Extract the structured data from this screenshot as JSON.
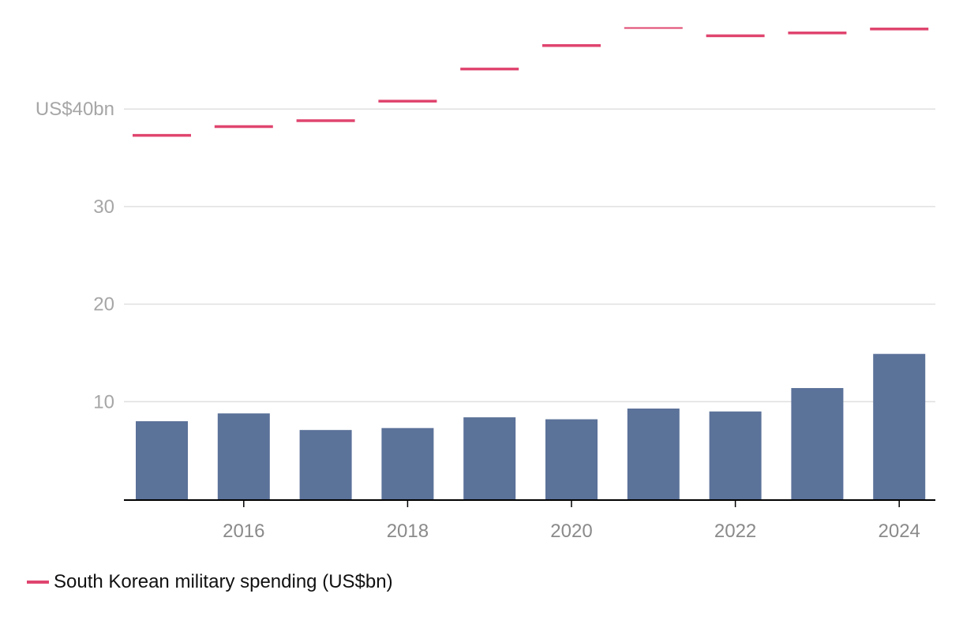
{
  "chart_data": {
    "type": "bar",
    "x": [
      2015,
      2016,
      2017,
      2018,
      2019,
      2020,
      2021,
      2022,
      2023,
      2024
    ],
    "x_tick_labels": [
      "2016",
      "2018",
      "2020",
      "2022",
      "2024"
    ],
    "x_tick_values": [
      2016,
      2018,
      2020,
      2022,
      2024
    ],
    "y_tick_labels": [
      "US$40bn",
      "30",
      "20",
      "10"
    ],
    "y_tick_values": [
      40,
      30,
      20,
      10
    ],
    "ylim": [
      0,
      49
    ],
    "grid": true,
    "series": [
      {
        "type": "bar",
        "color": "#5b7299",
        "values": [
          8.0,
          8.8,
          7.1,
          7.3,
          8.4,
          8.2,
          9.3,
          9.0,
          11.4,
          14.9
        ]
      },
      {
        "type": "line-marker",
        "name": "South Korean military spending (US$bn)",
        "color": "#e0456f",
        "values": [
          37.3,
          38.2,
          38.8,
          40.8,
          44.1,
          46.5,
          48.3,
          47.5,
          47.8,
          48.2
        ]
      }
    ],
    "legend": {
      "position": "bottom-left",
      "label": "South Korean military spending (US$bn)"
    }
  }
}
